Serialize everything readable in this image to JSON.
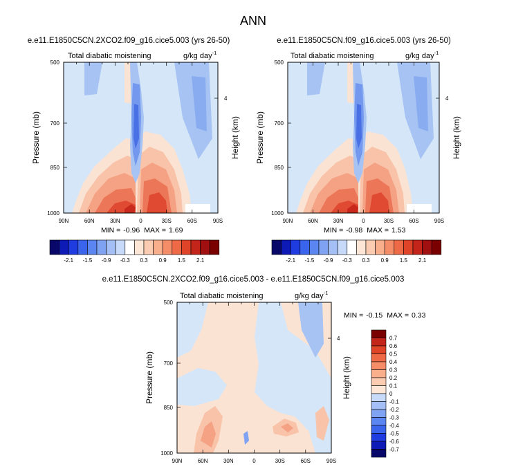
{
  "figure_title": "ANN",
  "chart_data": [
    {
      "type": "heatmap",
      "title": "e.e11.E1850C5CN.2XCO2.f09_g16.cice5.003 (yrs 26-50)",
      "subtitle_left": "Total diabatic moistening",
      "units_text": "g/kg day",
      "units_exp": "-1",
      "ylabel": "Pressure (mb)",
      "ylabel_right": "Height (km)",
      "x_ticks": [
        "90N",
        "60N",
        "30N",
        "0",
        "30S",
        "60S",
        "90S"
      ],
      "y_ticks": [
        "500",
        "700",
        "850",
        "1000"
      ],
      "right_ticks": [
        "4"
      ],
      "min_label": "MIN =",
      "min_value": "-0.96",
      "max_label": "MAX =",
      "max_value": "1.69",
      "min": -0.96,
      "max": 1.69
    },
    {
      "type": "heatmap",
      "title": "e.e11.E1850C5CN.f09_g16.cice5.003 (yrs 26-50)",
      "subtitle_left": "Total diabatic moistening",
      "units_text": "g/kg day",
      "units_exp": "-1",
      "ylabel": "Pressure (mb)",
      "ylabel_right": "Height (km)",
      "x_ticks": [
        "90N",
        "60N",
        "30N",
        "0",
        "30S",
        "60S",
        "90S"
      ],
      "y_ticks": [
        "500",
        "700",
        "850",
        "1000"
      ],
      "right_ticks": [
        "4"
      ],
      "min_label": "MIN =",
      "min_value": "-0.98",
      "max_label": "MAX =",
      "max_value": "1.53",
      "min": -0.98,
      "max": 1.53
    },
    {
      "type": "heatmap",
      "title": "e.e11.E1850C5CN.2XCO2.f09_g16.cice5.003 - e.e11.E1850C5CN.f09_g16.cice5.003",
      "subtitle_left": "Total diabatic moistening",
      "units_text": "g/kg day",
      "units_exp": "-1",
      "ylabel": "Pressure (mb)",
      "ylabel_right": "Height (km)",
      "x_ticks": [
        "90N",
        "60N",
        "30N",
        "0",
        "30S",
        "60S",
        "90S"
      ],
      "y_ticks": [
        "500",
        "700",
        "850",
        "1000"
      ],
      "right_ticks": [
        "4"
      ],
      "min_label": "MIN =",
      "min_value": "-0.15",
      "max_label": "MAX =",
      "max_value": "0.33",
      "min": -0.15,
      "max": 0.33
    }
  ],
  "colorbar_top": {
    "colors": [
      "#08086b",
      "#0d1ab5",
      "#1f3ce0",
      "#3a64ec",
      "#5b85f0",
      "#7fa3f2",
      "#a3bff6",
      "#c7daf9",
      "#ffffff",
      "#fde6d6",
      "#fcccb2",
      "#f9ae8c",
      "#f58d68",
      "#ee6a47",
      "#df4428",
      "#c4251b",
      "#a01010",
      "#7a0000"
    ],
    "labels": [
      "-2.1",
      "-1.5",
      "-0.9",
      "-0.3",
      "0.3",
      "0.9",
      "1.5",
      "2.1"
    ]
  },
  "colorbar_diff": {
    "colors": [
      "#08086b",
      "#0d1ab5",
      "#1f3ce0",
      "#3a64ec",
      "#5b85f0",
      "#7fa3f2",
      "#a3bff6",
      "#c7daf9",
      "#fde6d6",
      "#fcccb2",
      "#f9ae8c",
      "#f58d68",
      "#ee6a47",
      "#df4428",
      "#c4251b",
      "#7a0000"
    ],
    "labels": [
      "0.7",
      "0.6",
      "0.5",
      "0.4",
      "0.3",
      "0.2",
      "0.1",
      "0",
      "-0.1",
      "-0.2",
      "-0.3",
      "-0.4",
      "-0.5",
      "-0.6",
      "-0.7"
    ]
  }
}
